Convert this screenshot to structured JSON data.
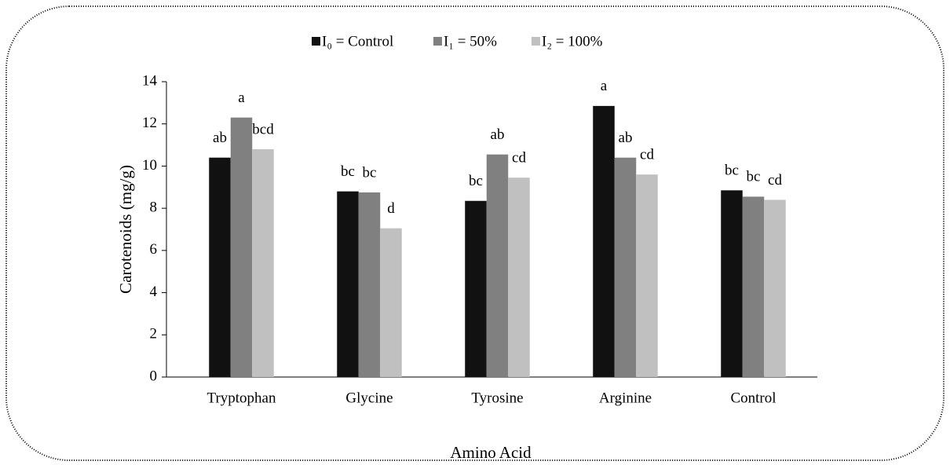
{
  "chart_data": {
    "type": "bar",
    "categories": [
      "Tryptophan",
      "Glycine",
      "Tyrosine",
      "Arginine",
      "Control"
    ],
    "series": [
      {
        "name": "I₀ = Control",
        "color": "#111111",
        "values": [
          10.4,
          8.8,
          8.35,
          12.85,
          8.85
        ],
        "annotations": [
          "ab",
          "bc",
          "bc",
          "a",
          "bc"
        ]
      },
      {
        "name": "I₁ = 50%",
        "color": "#808080",
        "values": [
          12.3,
          8.75,
          10.55,
          10.4,
          8.55
        ],
        "annotations": [
          "a",
          "bc",
          "ab",
          "ab",
          "bc"
        ]
      },
      {
        "name": "I₂ = 100%",
        "color": "#c0c0c0",
        "values": [
          10.8,
          7.05,
          9.45,
          9.6,
          8.4
        ],
        "annotations": [
          "bcd",
          "d",
          "cd",
          "cd",
          "cd"
        ]
      }
    ],
    "xlabel": "Amino Acid",
    "ylabel": "Carotenoids (mg/g)",
    "ylim": [
      0,
      14
    ],
    "yticks": [
      0,
      2,
      4,
      6,
      8,
      10,
      12,
      14
    ],
    "legend": "top"
  }
}
